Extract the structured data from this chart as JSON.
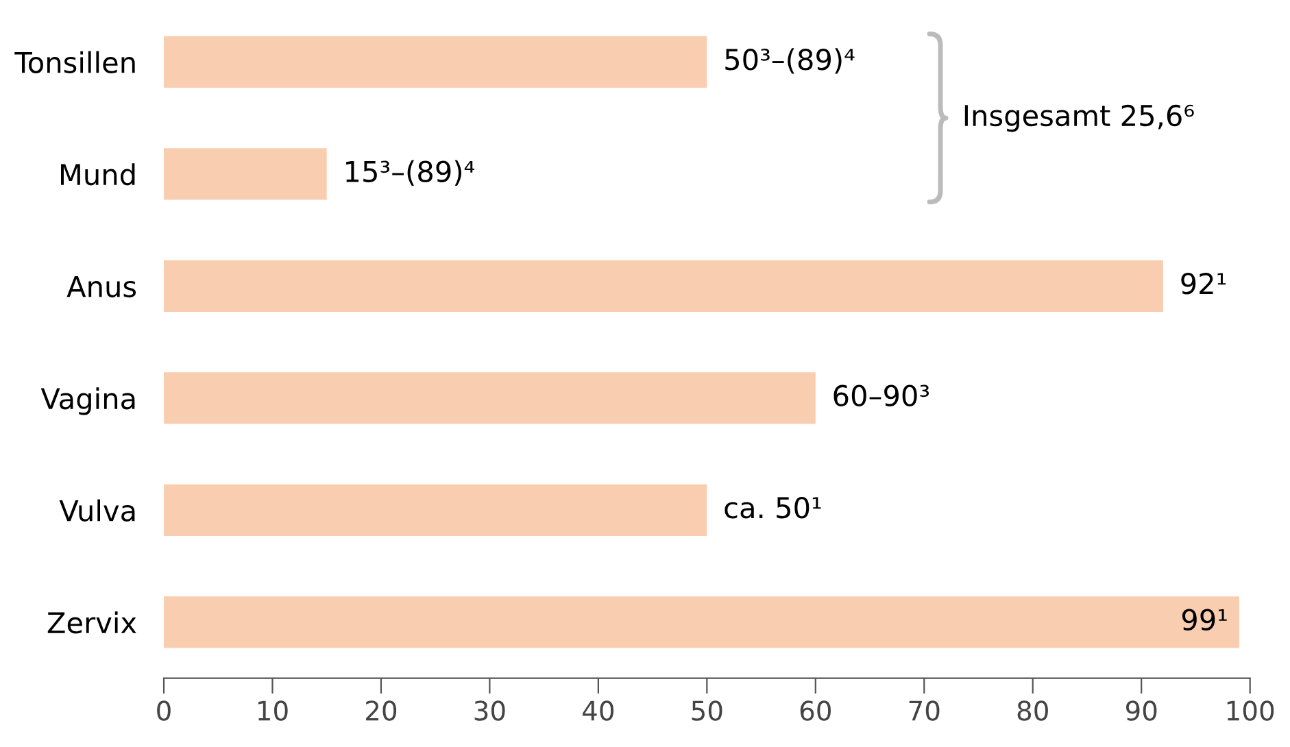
{
  "chart_data": {
    "type": "bar",
    "orientation": "horizontal",
    "categories": [
      "Tonsillen",
      "Mund",
      "Anus",
      "Vagina",
      "Vulva",
      "Zervix"
    ],
    "values": [
      50,
      15,
      92,
      60,
      50,
      99
    ],
    "value_labels": [
      "50³–(89)⁴",
      "15³–(89)⁴",
      "92¹",
      "60–90³",
      "ca. 50¹",
      "99¹"
    ],
    "color": "#f9cdb0",
    "xlim": [
      0,
      100
    ],
    "xticks": [
      0,
      10,
      20,
      30,
      40,
      50,
      60,
      70,
      80,
      90,
      100
    ],
    "grid": false,
    "legend": false,
    "annotations": [
      "Insgesamt 25,6⁶"
    ]
  }
}
